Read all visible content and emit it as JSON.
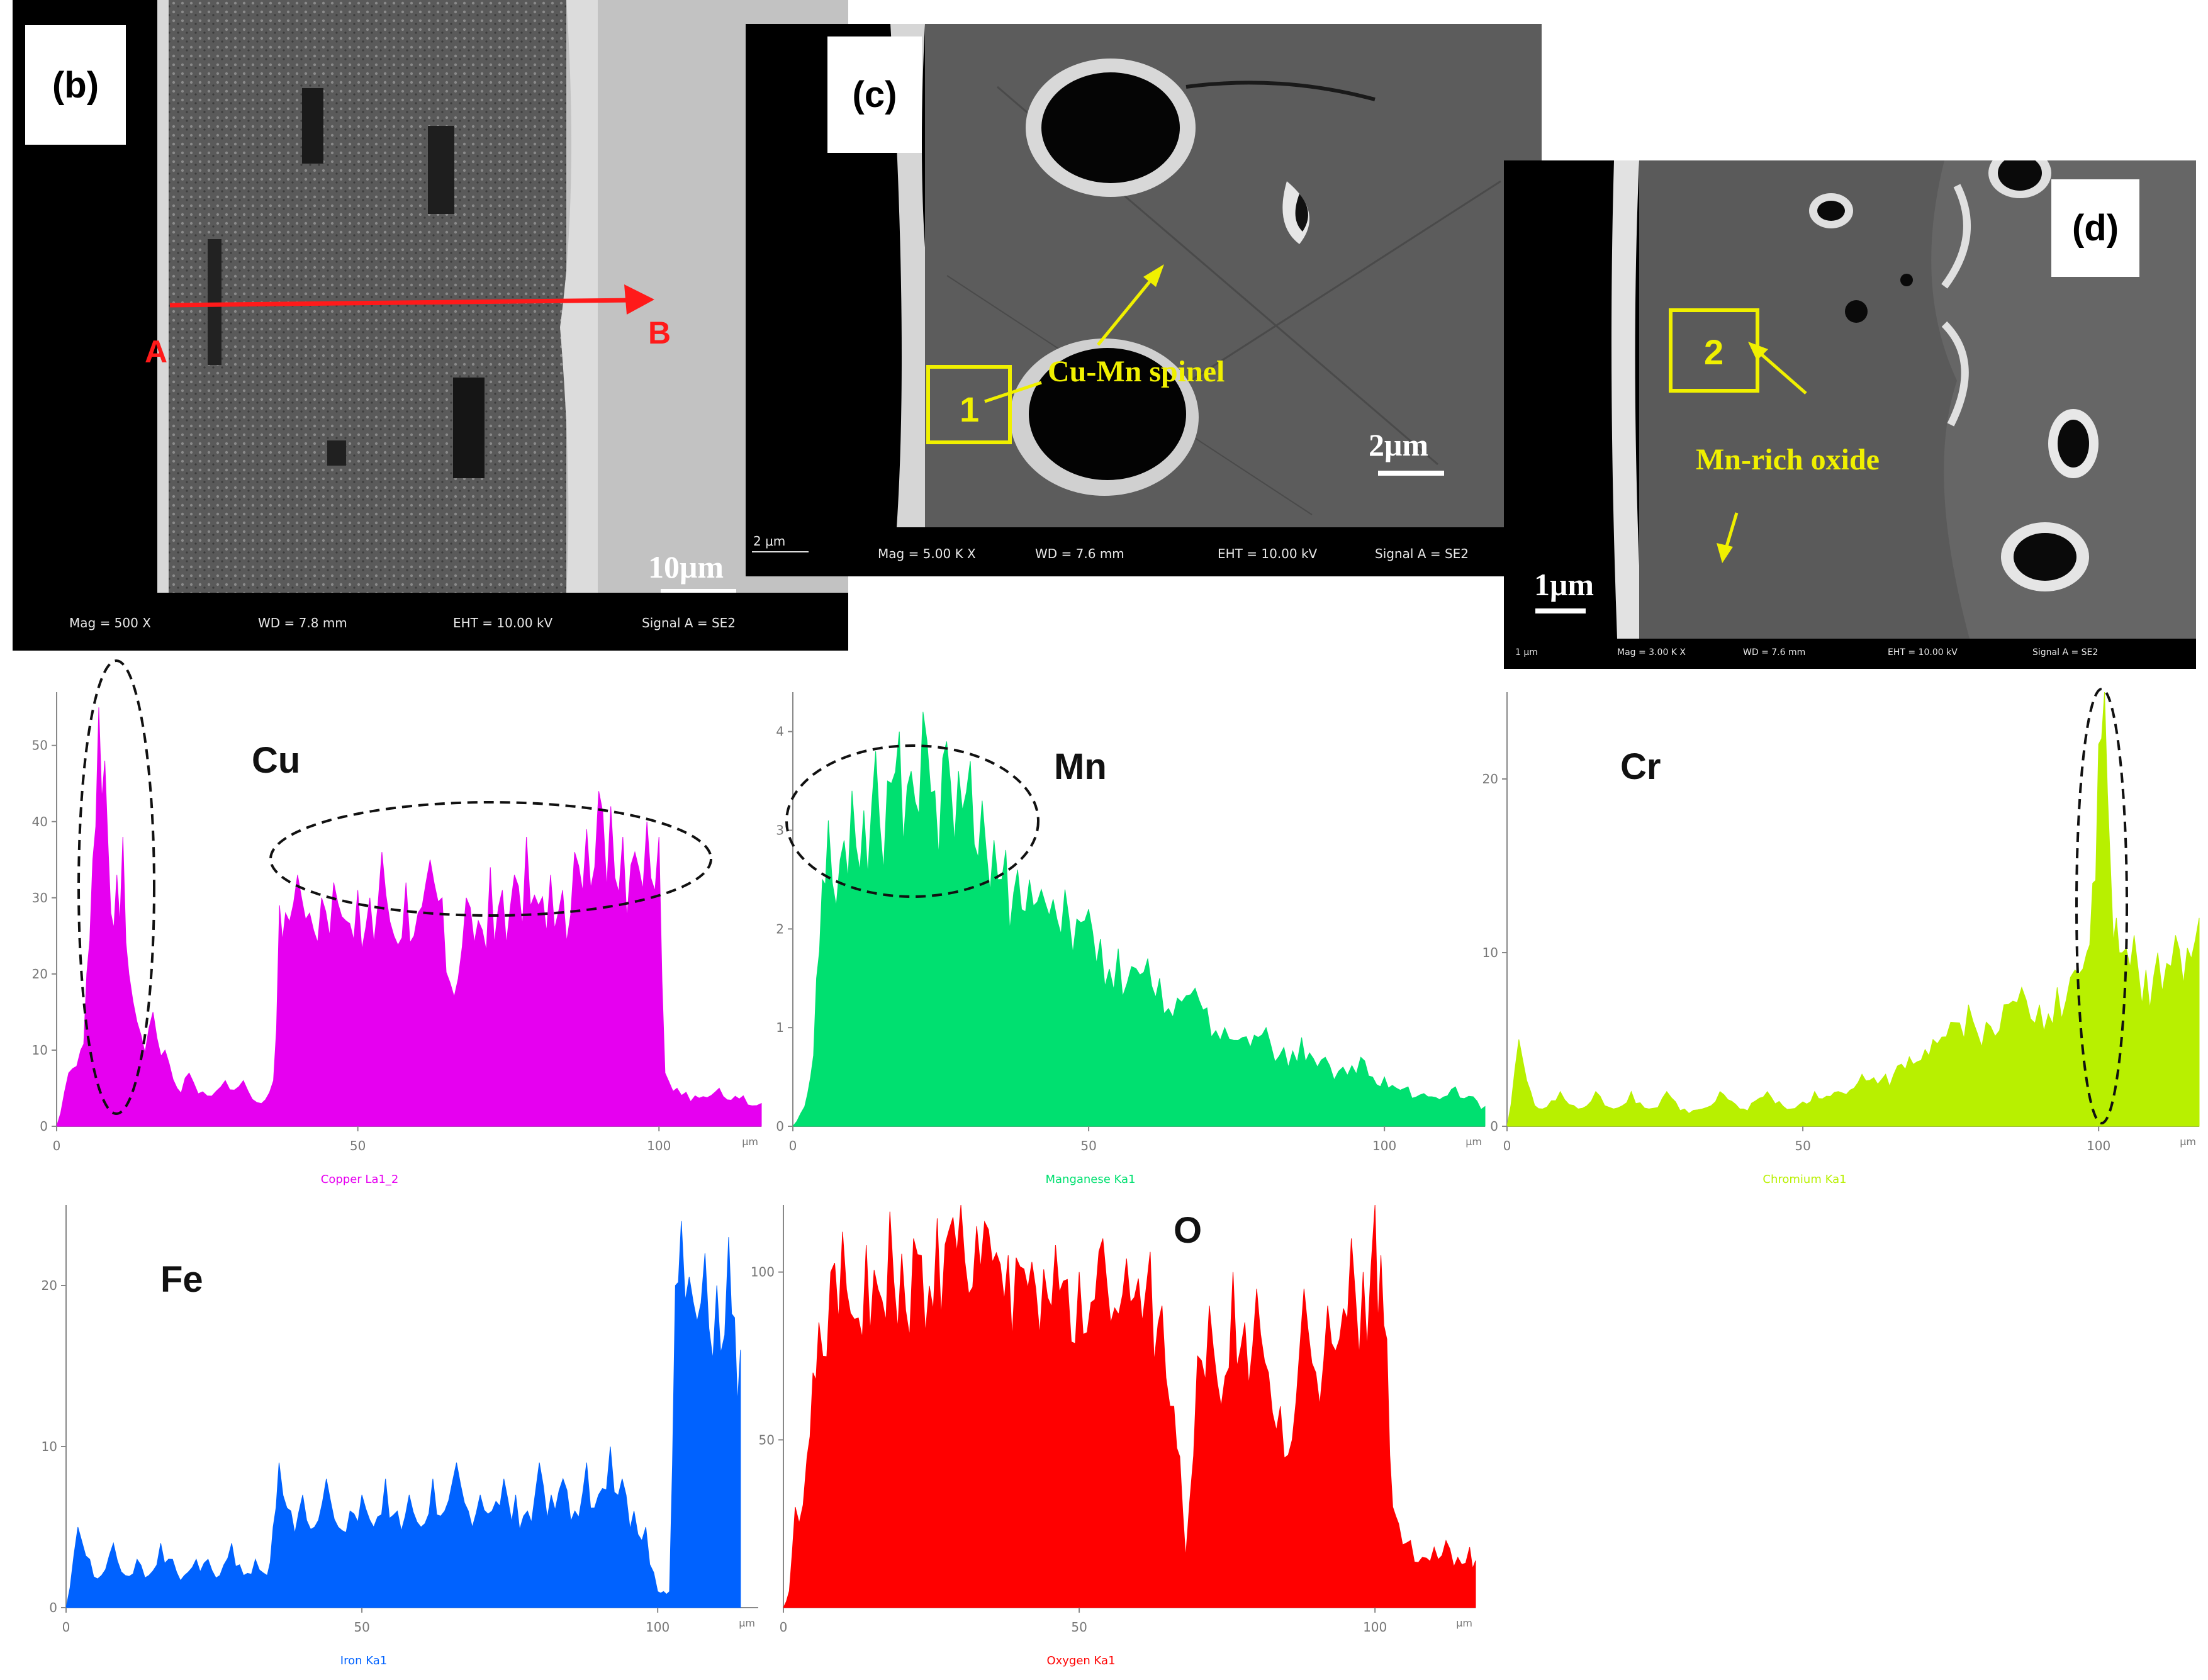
{
  "panels": {
    "b": {
      "label": "(b)",
      "point_a": "A",
      "point_b": "B",
      "scale": "10μm",
      "footer": {
        "mag": "Mag =  500 X",
        "wd": "WD =  7.8 mm",
        "eht": "EHT = 10.00 kV",
        "signal": "Signal A = SE2"
      }
    },
    "c": {
      "label": "(c)",
      "annotation": "Cu-Mn spinel",
      "box": "1",
      "scale": "2μm",
      "scale_small": "2 μm",
      "footer": {
        "mag": "Mag =  5.00 K X",
        "wd": "WD =  7.6 mm",
        "eht": "EHT = 10.00 kV",
        "signal": "Signal A = SE2"
      }
    },
    "d": {
      "label": "(d)",
      "annotation": "Mn-rich oxide",
      "box": "2",
      "scale": "1μm",
      "scale_small": "1 μm",
      "footer": {
        "mag": "Mag =  3.00 K X",
        "wd": "WD = 7.6 mm",
        "eht": "EHT = 10.00 kV",
        "signal": "Signal A = SE2"
      }
    }
  },
  "chart_data": [
    {
      "type": "area",
      "element": "Cu",
      "series_label": "Copper La1_2",
      "color": "#e600f0",
      "xlim": [
        0,
        117
      ],
      "xticks": [
        "0",
        "50",
        "100"
      ],
      "x_unit": "μm",
      "ylim": [
        0,
        57
      ],
      "yticks": [
        "0",
        "10",
        "20",
        "30",
        "40",
        "50"
      ],
      "x": [
        0,
        2,
        4,
        5,
        6,
        7,
        8,
        9,
        10,
        11,
        12,
        14,
        16,
        18,
        20,
        22,
        25,
        28,
        31,
        34,
        36,
        37,
        38,
        40,
        42,
        44,
        46,
        48,
        50,
        52,
        54,
        56,
        58,
        60,
        62,
        64,
        66,
        68,
        70,
        72,
        74,
        76,
        78,
        80,
        82,
        84,
        86,
        88,
        90,
        92,
        94,
        96,
        98,
        100,
        101,
        103,
        106,
        110,
        114,
        117
      ],
      "values": [
        0,
        7,
        10,
        20,
        35,
        55,
        48,
        28,
        33,
        38,
        20,
        12,
        15,
        10,
        5,
        7,
        4,
        6,
        6,
        3,
        6,
        29,
        28,
        33,
        28,
        30,
        32,
        27,
        31,
        30,
        36,
        25,
        32,
        28,
        35,
        30,
        17,
        30,
        27,
        34,
        31,
        33,
        38,
        29,
        33,
        31,
        36,
        39,
        44,
        42,
        38,
        36,
        40,
        38,
        7,
        5,
        4,
        5,
        4,
        3
      ]
    },
    {
      "type": "area",
      "element": "Mn",
      "series_label": "Manganese Ka1",
      "color": "#00e070",
      "xlim": [
        0,
        117
      ],
      "xticks": [
        "0",
        "50",
        "100"
      ],
      "x_unit": "μm",
      "ylim": [
        0,
        4.4
      ],
      "yticks": [
        "0",
        "1",
        "2",
        "3",
        "4"
      ],
      "x": [
        0,
        2,
        3,
        4,
        5,
        6,
        8,
        10,
        12,
        14,
        16,
        18,
        20,
        22,
        24,
        26,
        28,
        30,
        32,
        34,
        36,
        38,
        40,
        42,
        44,
        46,
        48,
        50,
        52,
        55,
        58,
        60,
        62,
        65,
        68,
        70,
        73,
        76,
        80,
        83,
        86,
        90,
        93,
        96,
        100,
        104,
        108,
        112,
        115,
        117
      ],
      "values": [
        0,
        0.2,
        0.5,
        1.5,
        2.5,
        3.1,
        2.7,
        3.4,
        3.2,
        3.8,
        3.5,
        4.0,
        3.6,
        4.2,
        3.4,
        3.9,
        3.6,
        3.7,
        3.3,
        2.9,
        2.8,
        2.6,
        2.5,
        2.4,
        2.3,
        2.4,
        2.1,
        2.2,
        1.9,
        1.8,
        1.6,
        1.7,
        1.5,
        1.3,
        1.4,
        1.2,
        1.0,
        0.9,
        1.0,
        0.8,
        0.9,
        0.7,
        0.6,
        0.7,
        0.5,
        0.4,
        0.3,
        0.4,
        0.3,
        0.2
      ]
    },
    {
      "type": "area",
      "element": "Cr",
      "series_label": "Chromium Ka1",
      "color": "#b8f000",
      "xlim": [
        0,
        117
      ],
      "xticks": [
        "0",
        "50",
        "100"
      ],
      "x_unit": "μm",
      "ylim": [
        0,
        25
      ],
      "yticks": [
        "0",
        "10",
        "20"
      ],
      "x": [
        0,
        2,
        4,
        6,
        9,
        12,
        15,
        18,
        21,
        24,
        27,
        30,
        33,
        36,
        40,
        44,
        48,
        52,
        56,
        60,
        64,
        68,
        72,
        75,
        78,
        81,
        84,
        87,
        90,
        93,
        96,
        98,
        99,
        100,
        101,
        102,
        103,
        104,
        106,
        108,
        110,
        113,
        117
      ],
      "values": [
        0,
        5,
        2,
        1,
        2,
        1,
        2,
        1,
        2,
        1,
        2,
        1,
        1,
        2,
        1,
        2,
        1,
        2,
        2,
        3,
        3,
        4,
        5,
        6,
        7,
        6,
        7,
        8,
        7,
        8,
        9,
        10,
        14,
        22,
        25,
        15,
        12,
        10,
        11,
        9,
        10,
        11,
        12
      ]
    },
    {
      "type": "area",
      "element": "Fe",
      "series_label": "Iron Ka1",
      "color": "#0062ff",
      "xlim": [
        0,
        117
      ],
      "xticks": [
        "0",
        "50",
        "100"
      ],
      "x_unit": "μm",
      "ylim": [
        0,
        25
      ],
      "yticks": [
        "0",
        "10",
        "20"
      ],
      "x": [
        0,
        2,
        4,
        6,
        8,
        10,
        12,
        14,
        16,
        18,
        20,
        22,
        24,
        26,
        28,
        30,
        32,
        34,
        35,
        36,
        38,
        40,
        42,
        44,
        46,
        48,
        50,
        52,
        54,
        56,
        58,
        60,
        62,
        64,
        66,
        68,
        70,
        72,
        74,
        76,
        78,
        80,
        82,
        84,
        86,
        88,
        90,
        92,
        94,
        96,
        98,
        100,
        101,
        102,
        103,
        104,
        106,
        108,
        110,
        112,
        113,
        114
      ],
      "values": [
        0,
        5,
        3,
        2,
        4,
        2,
        3,
        2,
        4,
        3,
        2,
        3,
        3,
        2,
        4,
        2,
        3,
        2,
        5,
        9,
        6,
        7,
        5,
        8,
        5,
        6,
        7,
        5,
        8,
        6,
        7,
        5,
        8,
        6,
        9,
        6,
        7,
        6,
        8,
        7,
        6,
        9,
        7,
        8,
        6,
        9,
        7,
        10,
        8,
        6,
        5,
        1,
        1,
        1,
        20,
        24,
        19,
        22,
        20,
        23,
        18,
        16
      ]
    },
    {
      "type": "area",
      "element": "O",
      "series_label": "Oxygen Ka1",
      "color": "#ff0000",
      "xlim": [
        0,
        117
      ],
      "xticks": [
        "0",
        "50",
        "100"
      ],
      "x_unit": "μm",
      "ylim": [
        0,
        120
      ],
      "yticks": [
        "50",
        "100"
      ],
      "x": [
        0,
        1,
        2,
        4,
        5,
        6,
        8,
        10,
        14,
        18,
        22,
        26,
        30,
        34,
        38,
        42,
        46,
        50,
        54,
        58,
        62,
        64,
        66,
        67,
        68,
        70,
        72,
        74,
        76,
        78,
        80,
        82,
        84,
        86,
        88,
        90,
        92,
        94,
        96,
        98,
        100,
        101,
        102,
        103,
        104,
        106,
        108,
        110,
        112,
        114,
        116,
        117
      ],
      "values": [
        0,
        5,
        30,
        45,
        70,
        85,
        100,
        112,
        108,
        118,
        110,
        116,
        120,
        115,
        105,
        103,
        108,
        100,
        110,
        104,
        106,
        90,
        60,
        45,
        15,
        75,
        90,
        60,
        100,
        85,
        95,
        70,
        60,
        50,
        95,
        70,
        90,
        80,
        110,
        100,
        120,
        105,
        80,
        30,
        25,
        20,
        15,
        18,
        20,
        15,
        18,
        14
      ]
    }
  ]
}
